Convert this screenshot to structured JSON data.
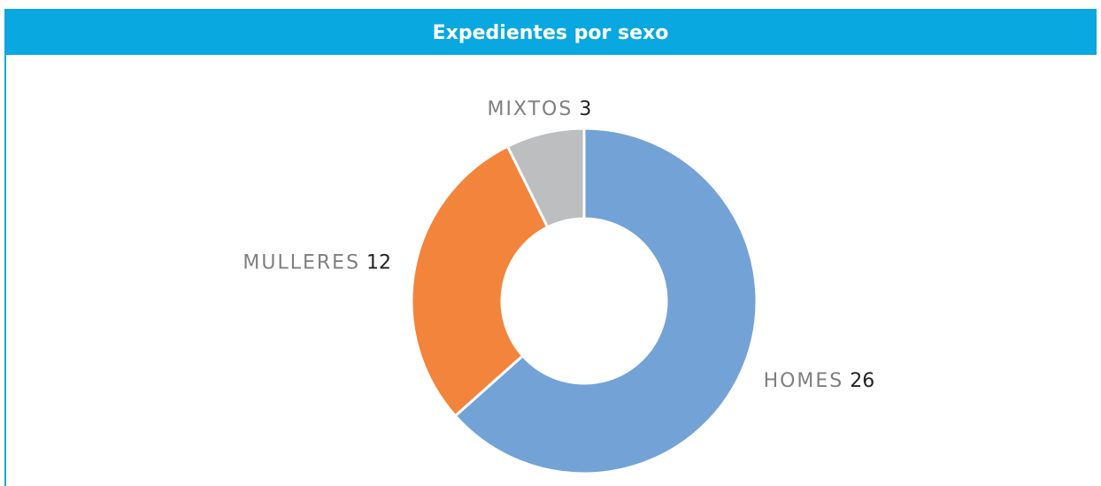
{
  "chart_data": {
    "type": "pie",
    "title": "Expedientes por sexo",
    "categories": [
      "HOMES",
      "MULLERES",
      "MIXTOS"
    ],
    "values": [
      26,
      12,
      3
    ],
    "colors": [
      "#73a2d6",
      "#f3843b",
      "#bdbec0"
    ],
    "donut": true
  }
}
